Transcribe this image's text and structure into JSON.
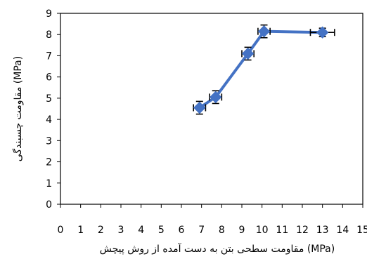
{
  "chart_data": {
    "type": "line",
    "xlabel": "مقاومت سطحی بتن به دست آمده از روش پیچش (MPa)",
    "ylabel": "مقاومت چسبندگی (MPa)",
    "xlim": [
      0,
      15
    ],
    "ylim": [
      0,
      9
    ],
    "x_ticks": [
      "0",
      "1",
      "2",
      "3",
      "4",
      "5",
      "6",
      "7",
      "8",
      "9",
      "10",
      "11",
      "12",
      "13",
      "14",
      "15"
    ],
    "y_ticks": [
      "0",
      "1",
      "2",
      "3",
      "4",
      "5",
      "6",
      "7",
      "8",
      "9"
    ],
    "grid": false,
    "error_bars": true,
    "series": [
      {
        "color": "#4472C4",
        "marker": "diamond",
        "points": [
          {
            "x": 6.9,
            "y": 4.55,
            "xerr": 0.3,
            "yerr": 0.3
          },
          {
            "x": 7.7,
            "y": 5.05,
            "xerr": 0.3,
            "yerr": 0.3
          },
          {
            "x": 9.3,
            "y": 7.1,
            "xerr": 0.3,
            "yerr": 0.3
          },
          {
            "x": 10.1,
            "y": 8.15,
            "xerr": 0.3,
            "yerr": 0.3
          },
          {
            "x": 13.0,
            "y": 8.1,
            "xerr": 0.6,
            "yerr": 0.2
          }
        ]
      }
    ]
  }
}
